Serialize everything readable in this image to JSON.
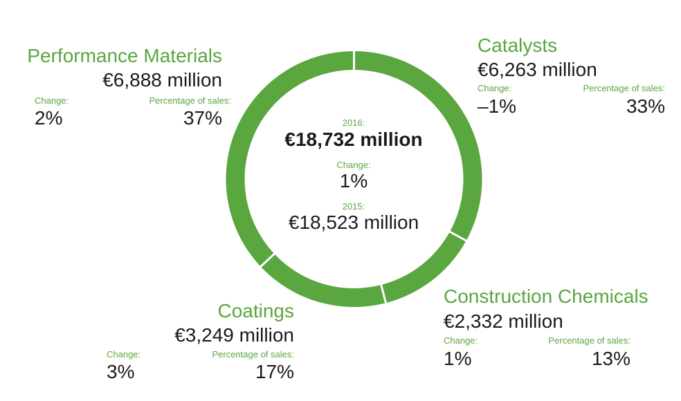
{
  "chart_data": {
    "type": "pie",
    "variant": "donut",
    "color": "#5aa63f",
    "center": {
      "year_label": "2016:",
      "total": "€18,732 million",
      "change_label": "Change:",
      "change": "1%",
      "prev_year_label": "2015:",
      "prev_total": "€18,523 million"
    },
    "segments": [
      {
        "name": "Catalysts",
        "value_text": "€6,263 million",
        "value": 6263,
        "change_label": "Change:",
        "change": "–1%",
        "share_label": "Percentage of sales:",
        "share": "33%",
        "share_value": 33
      },
      {
        "name": "Construction Chemicals",
        "value_text": "€2,332 million",
        "value": 2332,
        "change_label": "Change:",
        "change": "1%",
        "share_label": "Percentage of sales:",
        "share": "13%",
        "share_value": 13
      },
      {
        "name": "Coatings",
        "value_text": "€3,249 million",
        "value": 3249,
        "change_label": "Change:",
        "change": "3%",
        "share_label": "Percentage of sales:",
        "share": "17%",
        "share_value": 17
      },
      {
        "name": "Performance Materials",
        "value_text": "€6,888 million",
        "value": 6888,
        "change_label": "Change:",
        "change": "2%",
        "share_label": "Percentage of sales:",
        "share": "37%",
        "share_value": 37
      }
    ]
  }
}
